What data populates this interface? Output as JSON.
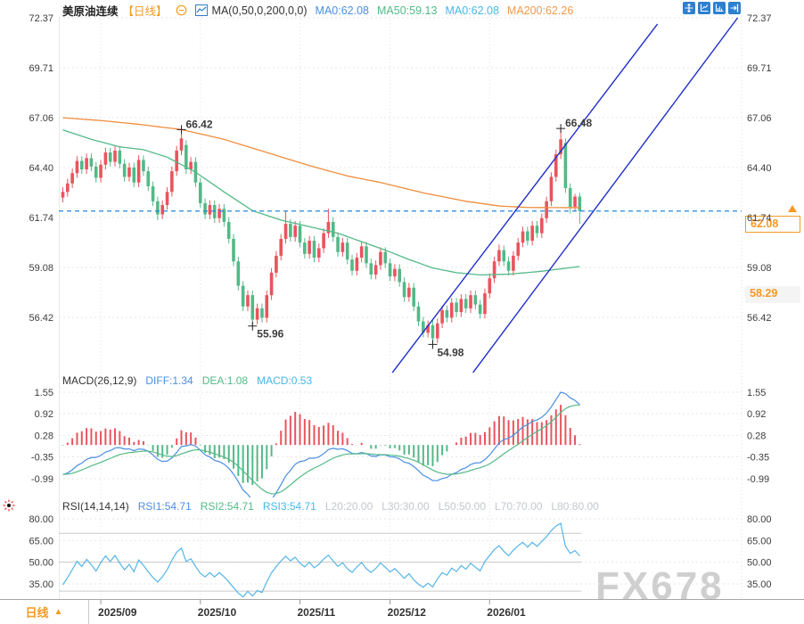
{
  "watermark": "FX678",
  "colors": {
    "up": "#e9545d",
    "down": "#53b987",
    "ma50_line": "#53b987",
    "ma200_line": "#ef8e3c",
    "diff_line": "#4a8fe3",
    "dea_line": "#53b987",
    "rsi_line": "#55b5e8",
    "last_price_line": "#1e88e5",
    "channel": "#1f2ecb",
    "accent_orange": "#f59a23",
    "blue_value": "#4a8fe3",
    "green_value": "#53b987",
    "cyan_value": "#45b8e8",
    "orange_value": "#f19a4e",
    "gray_label": "#c3c7ce",
    "axis_text": "#3c3c3c",
    "toolbar_blue": "#2e7fd0",
    "annotation_high": "#e9545d",
    "annotation_low": "#53b987",
    "watermark_gray": "#cfcfcf"
  },
  "header": {
    "symbol": "美原油连续",
    "period_tag": "【日线】",
    "ma_settings": "MA(0,50,0,200,0,0)",
    "ma0": "MA0:62.08",
    "ma50": "MA50:59.13",
    "ma0b": "MA0:62.08",
    "ma200": "MA200:62.26"
  },
  "toolbar": {
    "icons": [
      "pan-move-icon",
      "axis-scale-icon",
      "axis-scale-right-icon",
      "collapse-right-icon"
    ]
  },
  "macd_header": {
    "title": "MACD(26,12,9)",
    "diff": "DIFF:1.34",
    "dea": "DEA:1.08",
    "macd": "MACD:0.53"
  },
  "rsi_header": {
    "title": "RSI(14,14,14)",
    "r1": "RSI1:54.71",
    "r2": "RSI2:54.71",
    "r3": "RSI3:54.71",
    "levels": [
      "L20:20.00",
      "L30:30.00",
      "L50:50.00",
      "L70:70.00",
      "L80:80.00"
    ]
  },
  "price_tags": {
    "last": "62.08",
    "ref": "58.29"
  },
  "footer": {
    "period_label": "日线",
    "caret": "▲"
  },
  "chart_data": {
    "type": "candlestick",
    "symbol": "美原油连续",
    "interval": "日线",
    "y_ticks": [
      72.37,
      69.71,
      67.06,
      64.4,
      61.74,
      59.08,
      56.42
    ],
    "last_price": 62.08,
    "ref_price": 58.29,
    "month_ticks": [
      {
        "label": "2025/09",
        "idx": 8
      },
      {
        "label": "2025/10",
        "idx": 29
      },
      {
        "label": "2025/11",
        "idx": 50
      },
      {
        "label": "2025/12",
        "idx": 69
      },
      {
        "label": "2026/01",
        "idx": 90
      }
    ],
    "annotations": [
      {
        "text": "66.42",
        "idx": 25,
        "price": 66.42,
        "kind": "high"
      },
      {
        "text": "66.48",
        "idx": 105,
        "price": 66.48,
        "kind": "high"
      },
      {
        "text": "55.96",
        "idx": 40,
        "price": 55.96,
        "kind": "low"
      },
      {
        "text": "54.98",
        "idx": 78,
        "price": 54.98,
        "kind": "low"
      }
    ],
    "channel_lines": [
      {
        "x1_idx": 69.5,
        "p1": 53.48,
        "x2_idx": 125.4,
        "p2": 72.04
      },
      {
        "x1_idx": 86.5,
        "p1": 53.48,
        "x2_idx": 142.3,
        "p2": 72.37
      }
    ],
    "ma200_anchors": [
      [
        0,
        67.05
      ],
      [
        8,
        66.9
      ],
      [
        16,
        66.7
      ],
      [
        25,
        66.42
      ],
      [
        34,
        65.9
      ],
      [
        43,
        65.2
      ],
      [
        52,
        64.5
      ],
      [
        60,
        63.95
      ],
      [
        67,
        63.6
      ],
      [
        76,
        63.05
      ],
      [
        85,
        62.6
      ],
      [
        92,
        62.35
      ],
      [
        98,
        62.27
      ],
      [
        109,
        62.26
      ]
    ],
    "ma50_anchors": [
      [
        0,
        66.4
      ],
      [
        6,
        65.9
      ],
      [
        12,
        65.5
      ],
      [
        17,
        65.35
      ],
      [
        22,
        64.95
      ],
      [
        28,
        64.15
      ],
      [
        34,
        63.1
      ],
      [
        40,
        62.1
      ],
      [
        46,
        61.6
      ],
      [
        52,
        61.25
      ],
      [
        58,
        60.9
      ],
      [
        63,
        60.45
      ],
      [
        68,
        60.0
      ],
      [
        73,
        59.5
      ],
      [
        78,
        59.05
      ],
      [
        83,
        58.8
      ],
      [
        88,
        58.68
      ],
      [
        94,
        58.72
      ],
      [
        100,
        58.85
      ],
      [
        105,
        59.0
      ],
      [
        109,
        59.13
      ]
    ],
    "macd": {
      "ticks": [
        1.55,
        0.92,
        0.28,
        -0.35,
        -0.99
      ],
      "fast": 12,
      "slow": 26,
      "signal": 9,
      "diff": 1.34,
      "dea": 1.08,
      "macd": 0.53
    },
    "rsi": {
      "ticks": [
        80,
        65,
        50,
        35
      ],
      "period": 14,
      "value": 54.71,
      "level_lines": [
        70,
        50,
        30
      ]
    },
    "ohlc": [
      [
        62.8,
        63.35,
        62.55,
        63.1
      ],
      [
        63.1,
        63.8,
        62.85,
        63.55
      ],
      [
        63.55,
        64.35,
        63.3,
        64.1
      ],
      [
        64.1,
        65.0,
        63.85,
        64.75
      ],
      [
        64.75,
        65.0,
        64.05,
        64.3
      ],
      [
        64.3,
        65.15,
        64.05,
        64.9
      ],
      [
        64.9,
        65.15,
        64.2,
        64.45
      ],
      [
        64.45,
        64.7,
        63.6,
        63.85
      ],
      [
        63.85,
        64.8,
        63.6,
        64.55
      ],
      [
        64.55,
        65.45,
        64.3,
        65.2
      ],
      [
        65.2,
        65.45,
        64.45,
        64.7
      ],
      [
        64.7,
        65.55,
        64.45,
        65.3
      ],
      [
        65.3,
        65.55,
        64.35,
        64.6
      ],
      [
        64.6,
        64.85,
        63.65,
        63.9
      ],
      [
        63.9,
        64.65,
        63.65,
        64.4
      ],
      [
        64.4,
        64.65,
        63.35,
        63.6
      ],
      [
        63.6,
        65.05,
        63.35,
        64.8
      ],
      [
        64.8,
        65.05,
        63.95,
        64.2
      ],
      [
        64.2,
        64.45,
        63.15,
        63.4
      ],
      [
        63.4,
        63.65,
        62.35,
        62.6
      ],
      [
        62.6,
        62.85,
        61.6,
        61.9
      ],
      [
        61.9,
        62.65,
        61.65,
        62.4
      ],
      [
        62.4,
        63.35,
        62.15,
        63.1
      ],
      [
        63.1,
        64.45,
        62.85,
        64.2
      ],
      [
        64.2,
        65.55,
        63.95,
        65.3
      ],
      [
        65.3,
        66.42,
        65.05,
        65.95
      ],
      [
        65.6,
        65.85,
        64.05,
        64.3
      ],
      [
        64.3,
        64.95,
        64.05,
        64.7
      ],
      [
        64.7,
        64.95,
        63.35,
        63.6
      ],
      [
        63.6,
        63.85,
        62.25,
        62.5
      ],
      [
        62.5,
        62.75,
        61.65,
        61.9
      ],
      [
        61.9,
        62.65,
        61.65,
        62.4
      ],
      [
        62.4,
        62.65,
        61.45,
        61.7
      ],
      [
        61.7,
        62.45,
        61.45,
        62.2
      ],
      [
        62.2,
        62.45,
        61.25,
        61.5
      ],
      [
        61.5,
        61.75,
        60.35,
        60.6
      ],
      [
        60.6,
        60.85,
        59.15,
        59.4
      ],
      [
        59.4,
        59.65,
        57.85,
        58.1
      ],
      [
        58.1,
        58.35,
        56.75,
        57.0
      ],
      [
        57.0,
        57.85,
        56.75,
        57.6
      ],
      [
        57.6,
        57.85,
        55.96,
        56.3
      ],
      [
        56.3,
        57.15,
        56.05,
        56.9
      ],
      [
        56.9,
        57.15,
        56.15,
        56.4
      ],
      [
        56.4,
        57.85,
        56.15,
        57.6
      ],
      [
        57.6,
        59.05,
        57.35,
        58.8
      ],
      [
        58.8,
        59.95,
        58.55,
        59.7
      ],
      [
        59.7,
        60.85,
        59.45,
        60.6
      ],
      [
        60.6,
        62.1,
        60.35,
        61.4
      ],
      [
        61.4,
        61.65,
        60.45,
        60.7
      ],
      [
        60.7,
        61.55,
        60.45,
        61.3
      ],
      [
        61.3,
        61.55,
        60.15,
        60.4
      ],
      [
        60.4,
        60.65,
        59.55,
        59.8
      ],
      [
        59.8,
        60.75,
        59.55,
        60.5
      ],
      [
        60.5,
        60.75,
        59.35,
        59.6
      ],
      [
        59.6,
        60.35,
        59.35,
        60.1
      ],
      [
        60.1,
        61.15,
        59.85,
        60.9
      ],
      [
        60.9,
        62.2,
        60.65,
        61.5
      ],
      [
        61.5,
        61.75,
        60.45,
        60.7
      ],
      [
        60.7,
        60.95,
        59.65,
        59.9
      ],
      [
        59.9,
        60.65,
        59.65,
        60.4
      ],
      [
        60.4,
        60.65,
        59.25,
        59.5
      ],
      [
        59.5,
        59.75,
        58.65,
        58.9
      ],
      [
        58.9,
        59.85,
        58.65,
        59.6
      ],
      [
        59.6,
        60.45,
        59.35,
        60.2
      ],
      [
        60.2,
        60.45,
        59.05,
        59.3
      ],
      [
        59.3,
        59.55,
        58.45,
        58.7
      ],
      [
        58.7,
        59.45,
        58.45,
        59.2
      ],
      [
        59.2,
        60.15,
        58.95,
        59.9
      ],
      [
        59.9,
        60.15,
        59.05,
        59.3
      ],
      [
        59.3,
        59.55,
        58.35,
        58.6
      ],
      [
        58.6,
        59.25,
        58.35,
        59.0
      ],
      [
        59.0,
        59.25,
        58.05,
        58.3
      ],
      [
        58.3,
        58.55,
        57.25,
        57.5
      ],
      [
        57.5,
        58.25,
        57.25,
        58.0
      ],
      [
        58.0,
        58.25,
        56.75,
        57.0
      ],
      [
        57.0,
        57.25,
        55.95,
        56.2
      ],
      [
        56.2,
        56.45,
        55.35,
        55.6
      ],
      [
        55.6,
        56.25,
        55.35,
        56.0
      ],
      [
        56.0,
        56.25,
        54.98,
        55.3
      ],
      [
        55.3,
        56.35,
        55.05,
        56.1
      ],
      [
        56.1,
        57.05,
        55.85,
        56.8
      ],
      [
        56.8,
        57.05,
        56.15,
        56.4
      ],
      [
        56.4,
        57.45,
        56.15,
        57.2
      ],
      [
        57.2,
        57.45,
        56.45,
        56.7
      ],
      [
        56.7,
        57.65,
        56.45,
        57.4
      ],
      [
        57.4,
        57.65,
        56.65,
        56.9
      ],
      [
        56.9,
        57.85,
        56.65,
        57.6
      ],
      [
        57.6,
        57.85,
        56.85,
        57.1
      ],
      [
        57.1,
        57.35,
        56.35,
        56.6
      ],
      [
        56.6,
        57.95,
        56.35,
        57.7
      ],
      [
        57.7,
        58.75,
        57.45,
        58.5
      ],
      [
        58.5,
        59.65,
        58.25,
        59.4
      ],
      [
        59.4,
        60.3,
        59.15,
        60.0
      ],
      [
        60.0,
        60.25,
        59.15,
        59.4
      ],
      [
        59.4,
        59.65,
        58.65,
        58.9
      ],
      [
        58.9,
        59.95,
        58.65,
        59.7
      ],
      [
        59.7,
        60.65,
        59.45,
        60.4
      ],
      [
        60.4,
        61.25,
        60.15,
        61.0
      ],
      [
        61.0,
        61.25,
        60.25,
        60.5
      ],
      [
        60.5,
        61.55,
        60.25,
        61.3
      ],
      [
        61.3,
        61.55,
        60.65,
        60.9
      ],
      [
        60.9,
        61.95,
        60.65,
        61.7
      ],
      [
        61.7,
        62.85,
        61.45,
        62.6
      ],
      [
        62.6,
        64.15,
        62.35,
        63.9
      ],
      [
        63.9,
        65.35,
        63.65,
        65.1
      ],
      [
        65.1,
        66.48,
        64.85,
        65.9
      ],
      [
        65.7,
        65.95,
        63.05,
        63.3
      ],
      [
        63.3,
        63.55,
        61.95,
        62.3
      ],
      [
        62.3,
        63.0,
        62.05,
        62.85
      ],
      [
        62.85,
        63.05,
        61.4,
        62.08
      ]
    ]
  }
}
